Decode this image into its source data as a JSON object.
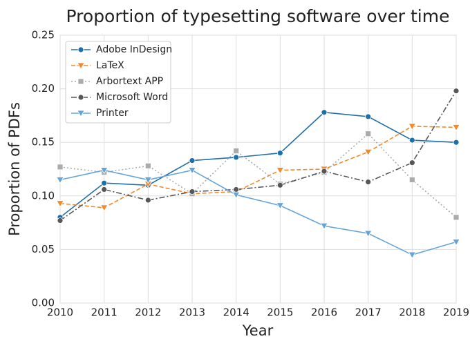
{
  "chart_data": {
    "type": "line",
    "title": "Proportion of typesetting software over time",
    "xlabel": "Year",
    "ylabel": "Proportion of PDFs",
    "x": [
      2010,
      2011,
      2012,
      2013,
      2014,
      2015,
      2016,
      2017,
      2018,
      2019
    ],
    "xlim": [
      2010,
      2019
    ],
    "xticks": [
      2010,
      2011,
      2012,
      2013,
      2014,
      2015,
      2016,
      2017,
      2018,
      2019
    ],
    "ylim": [
      0,
      0.25
    ],
    "yticks": [
      {
        "value": 0,
        "label": "0.00"
      },
      {
        "value": 0.05,
        "label": "0.05"
      },
      {
        "value": 0.1,
        "label": "0.10"
      },
      {
        "value": 0.15,
        "label": "0.15"
      },
      {
        "value": 0.2,
        "label": "0.20"
      },
      {
        "value": 0.25,
        "label": "0.25"
      }
    ],
    "grid": true,
    "legend": "upper left",
    "series": [
      {
        "name": "Adobe InDesign",
        "color": "#1f6fa8",
        "marker": "circle",
        "dash": "solid",
        "values": [
          0.08,
          0.112,
          0.11,
          0.133,
          0.136,
          0.14,
          0.178,
          0.174,
          0.152,
          0.15
        ]
      },
      {
        "name": "LaTeX",
        "color": "#f5892a",
        "marker": "triangle-down",
        "dash": "dashed",
        "values": [
          0.093,
          0.089,
          0.111,
          0.102,
          0.104,
          0.124,
          0.125,
          0.141,
          0.165,
          0.164
        ]
      },
      {
        "name": "Arbortext APP",
        "color": "#ababab",
        "marker": "square",
        "dash": "dotted",
        "values": [
          0.127,
          0.122,
          0.128,
          0.102,
          0.142,
          0.111,
          0.122,
          0.158,
          0.115,
          0.08
        ]
      },
      {
        "name": "Microsoft Word",
        "color": "#575757",
        "marker": "circle",
        "dash": "dashdot",
        "values": [
          0.077,
          0.106,
          0.096,
          0.104,
          0.106,
          0.11,
          0.123,
          0.113,
          0.131,
          0.198
        ]
      },
      {
        "name": "Printer",
        "color": "#65a4d8",
        "marker": "triangle-down",
        "dash": "solid",
        "values": [
          0.115,
          0.124,
          0.115,
          0.124,
          0.101,
          0.091,
          0.072,
          0.065,
          0.045,
          0.057
        ]
      }
    ]
  }
}
